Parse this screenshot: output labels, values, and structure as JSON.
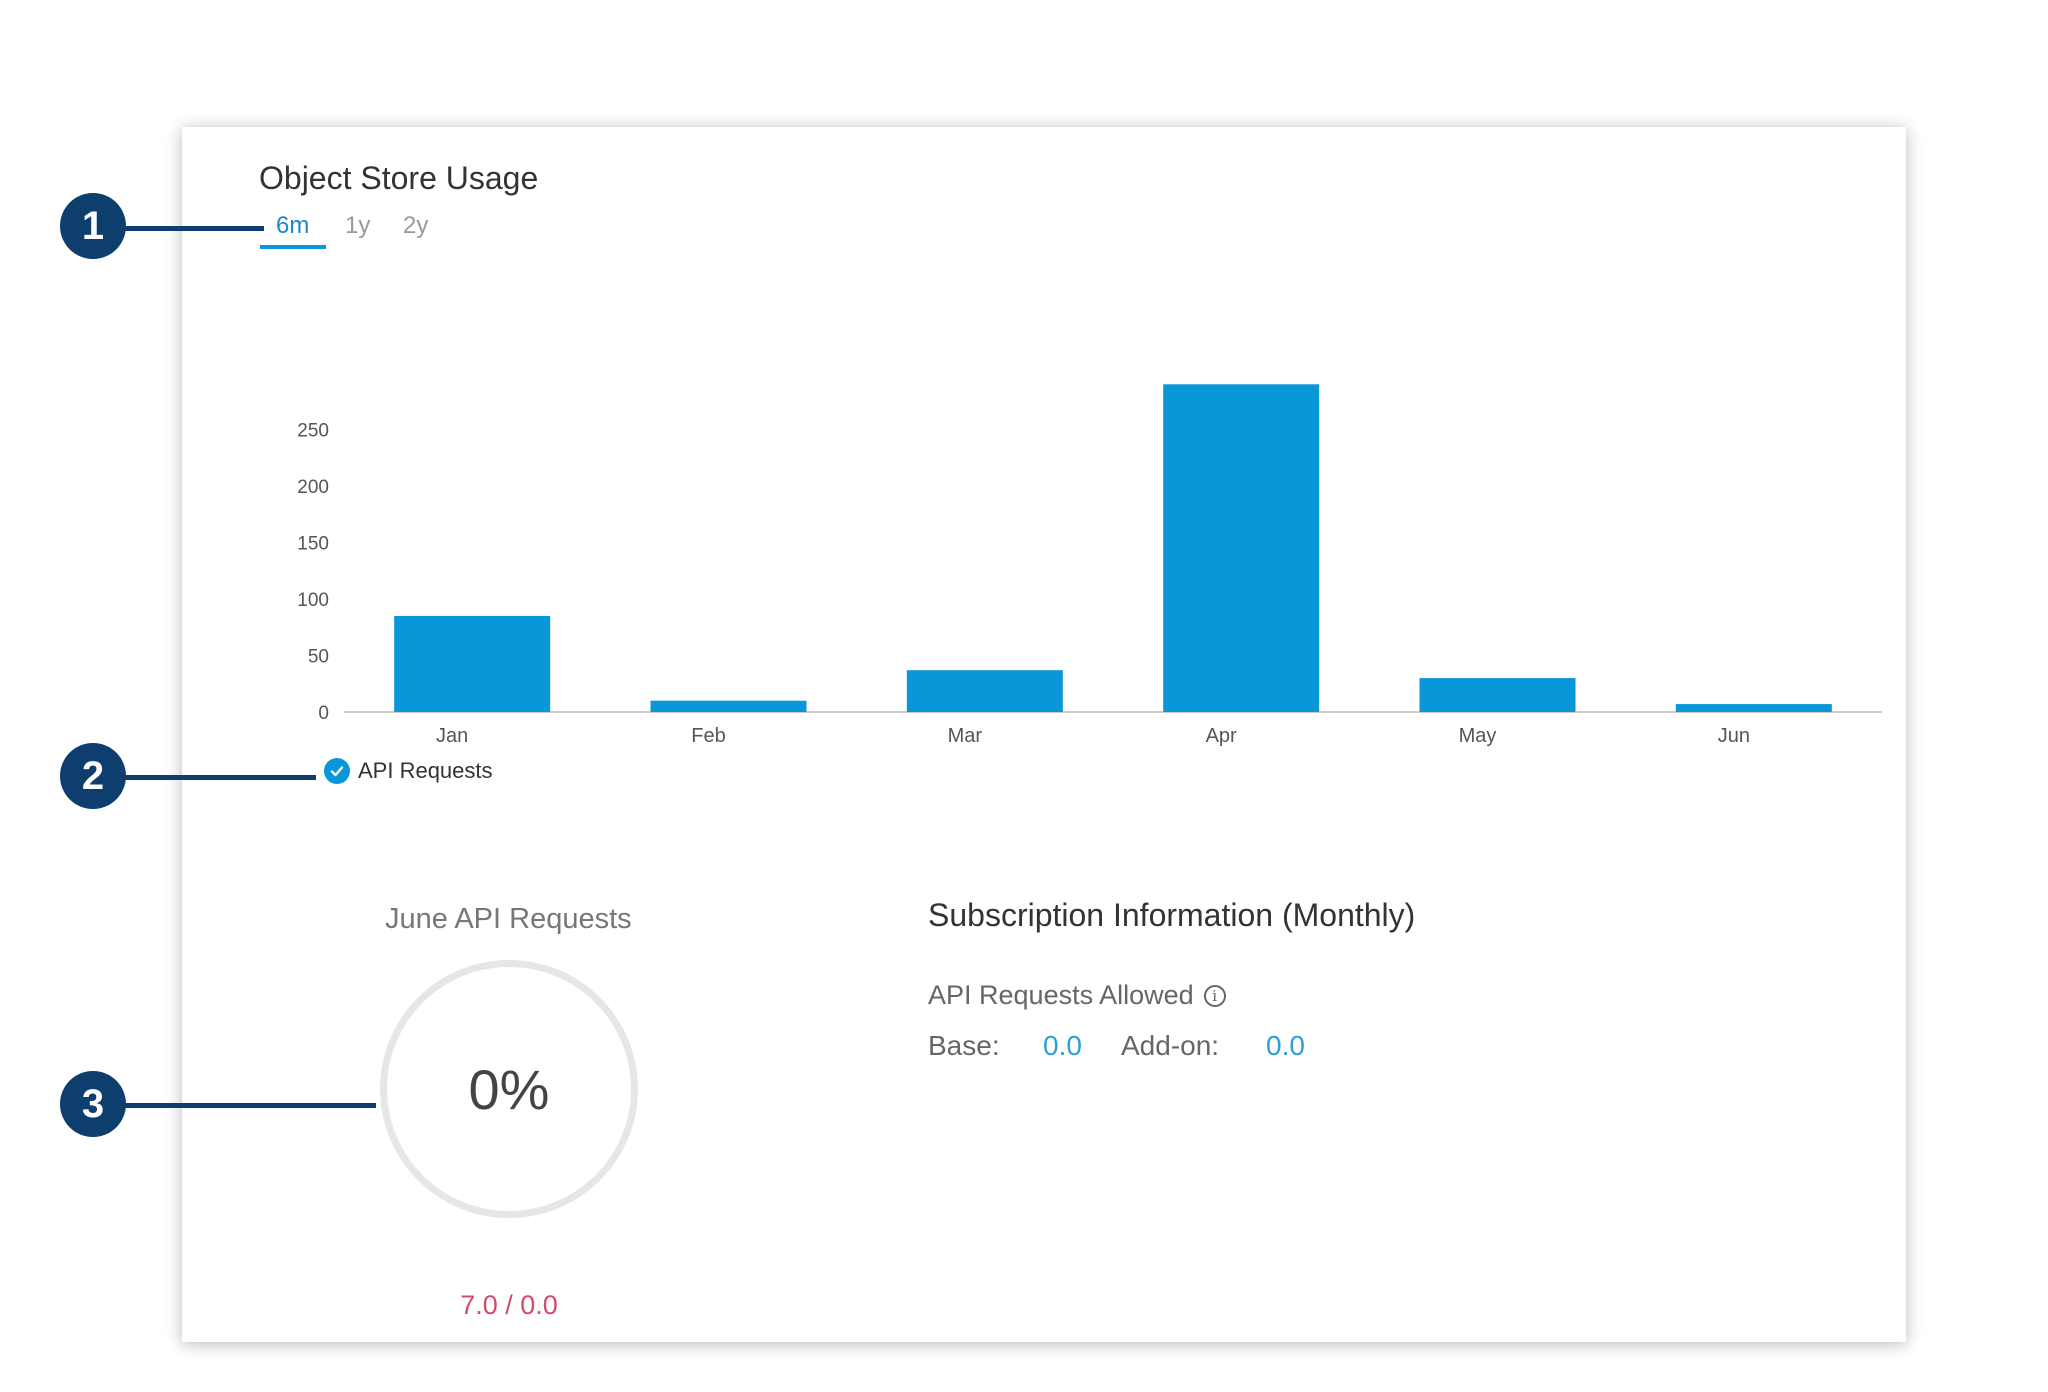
{
  "card": {
    "title": "Object Store Usage",
    "range_tabs": [
      {
        "label": "6m",
        "active": true
      },
      {
        "label": "1y",
        "active": false
      },
      {
        "label": "2y",
        "active": false
      }
    ]
  },
  "chart_data": {
    "type": "bar",
    "categories": [
      "Jan",
      "Feb",
      "Mar",
      "Apr",
      "May",
      "Jun"
    ],
    "series": [
      {
        "name": "API Requests",
        "values": [
          85,
          10,
          37,
          290,
          30,
          7
        ]
      }
    ],
    "y_ticks": [
      0,
      50,
      100,
      150,
      200,
      250
    ],
    "ylim": [
      0,
      290
    ],
    "title": "",
    "xlabel": "",
    "ylabel": "",
    "bar_color": "#0a97d9",
    "grid": false
  },
  "legend": {
    "label": "API Requests",
    "checked": true
  },
  "gauge": {
    "title": "June API Requests",
    "value": "0%",
    "footer": "7.0 / 0.0",
    "accent_color": "#d14b6a"
  },
  "subscription": {
    "title": "Subscription Information (Monthly)",
    "label": "API Requests Allowed",
    "base_label": "Base:",
    "base_value": "0.0",
    "addon_label": "Add-on:",
    "addon_value": "0.0"
  },
  "callouts": [
    "1",
    "2",
    "3"
  ],
  "colors": {
    "accent": "#0a97d9",
    "callout": "#0e3e6e"
  }
}
